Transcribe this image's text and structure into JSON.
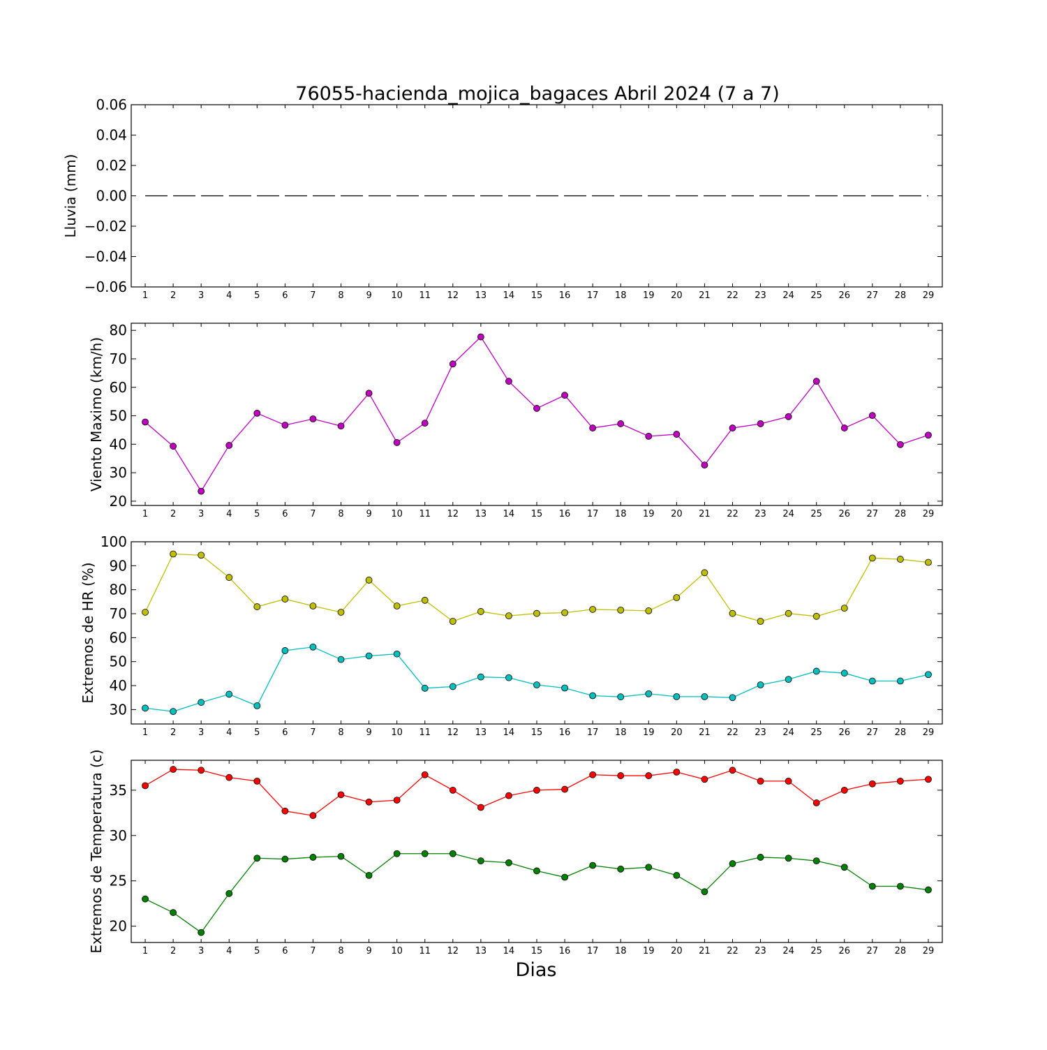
{
  "chart_data": {
    "type": "line",
    "title": "76055-hacienda_mojica_bagaces Abril 2024  (7 a 7)",
    "xlabel": "Dias",
    "x": [
      1,
      2,
      3,
      4,
      5,
      6,
      7,
      8,
      9,
      10,
      11,
      12,
      13,
      14,
      15,
      16,
      17,
      18,
      19,
      20,
      21,
      22,
      23,
      24,
      25,
      26,
      27,
      28,
      29
    ],
    "panels": [
      {
        "ylabel": "Lluvia (mm)",
        "ylim": [
          -0.06,
          0.06
        ],
        "yticks": [
          0.06,
          0.04,
          0.02,
          0.0,
          -0.02,
          -0.04,
          -0.06
        ],
        "ytick_labels": [
          "0.06",
          "0.04",
          "0.02",
          "0.00",
          "−0.02",
          "−0.04",
          "−0.06"
        ],
        "series": [
          {
            "color": "#000000",
            "style": "dashed",
            "marker": false,
            "values": [
              0,
              0,
              0,
              0,
              0,
              0,
              0,
              0,
              0,
              0,
              0,
              0,
              0,
              0,
              0,
              0,
              0,
              0,
              0,
              0,
              0,
              0,
              0,
              0,
              0,
              0,
              0,
              0,
              0
            ]
          }
        ]
      },
      {
        "ylabel": "Viento Maximo (km/h)",
        "ylim": [
          18.5,
          82.5
        ],
        "yticks": [
          80,
          70,
          60,
          50,
          40,
          30,
          20
        ],
        "ytick_labels": [
          "80",
          "70",
          "60",
          "50",
          "40",
          "30",
          "20"
        ],
        "series": [
          {
            "color": "#bf00bf",
            "style": "solid",
            "marker": true,
            "values": [
              47.8,
              39.3,
              23.5,
              39.6,
              50.9,
              46.7,
              48.9,
              46.4,
              57.9,
              40.6,
              47.4,
              68.2,
              77.7,
              62.1,
              52.6,
              57.2,
              45.7,
              47.2,
              42.8,
              43.5,
              32.7,
              45.7,
              47.2,
              49.7,
              62.1,
              45.7,
              50.1,
              39.9,
              43.2
            ]
          }
        ]
      },
      {
        "ylabel": "Extremos de HR (%)",
        "ylim": [
          24,
          100
        ],
        "yticks": [
          100,
          90,
          80,
          70,
          60,
          50,
          40,
          30
        ],
        "ytick_labels": [
          "100",
          "90",
          "80",
          "70",
          "60",
          "50",
          "40",
          "30"
        ],
        "series": [
          {
            "color": "#bfbf00",
            "style": "solid",
            "marker": true,
            "values": [
              70.6,
              94.9,
              94.4,
              85.1,
              72.9,
              76.1,
              73.2,
              70.6,
              84.0,
              73.2,
              75.6,
              66.8,
              70.9,
              69.1,
              70.1,
              70.4,
              71.8,
              71.5,
              71.2,
              76.7,
              87.1,
              70.1,
              66.8,
              70.1,
              68.9,
              72.3,
              93.2,
              92.7,
              91.4
            ]
          },
          {
            "color": "#00bfbf",
            "style": "solid",
            "marker": true,
            "values": [
              30.6,
              29.2,
              33.0,
              36.4,
              31.6,
              54.6,
              56.1,
              50.9,
              52.4,
              53.2,
              38.9,
              39.6,
              43.6,
              43.3,
              40.3,
              39.0,
              35.8,
              35.3,
              36.6,
              35.4,
              35.4,
              35.0,
              40.3,
              42.6,
              46.0,
              45.2,
              41.9,
              41.9,
              44.6
            ]
          }
        ]
      },
      {
        "ylabel": "Extremos de Temperatura (c)",
        "ylim": [
          18.2,
          38.3
        ],
        "yticks": [
          35,
          30,
          25,
          20
        ],
        "ytick_labels": [
          "35",
          "30",
          "25",
          "20"
        ],
        "series": [
          {
            "color": "#ff0000",
            "style": "solid",
            "marker": true,
            "values": [
              35.5,
              37.3,
              37.2,
              36.4,
              36.0,
              32.7,
              32.2,
              34.5,
              33.7,
              33.9,
              36.7,
              35.0,
              33.1,
              34.4,
              35.0,
              35.1,
              36.7,
              36.6,
              36.6,
              37.0,
              36.2,
              37.2,
              36.0,
              36.0,
              33.6,
              35.0,
              35.7,
              36.0,
              36.2
            ]
          },
          {
            "color": "#008000",
            "style": "solid",
            "marker": true,
            "values": [
              23.0,
              21.5,
              19.3,
              23.6,
              27.5,
              27.4,
              27.6,
              27.7,
              25.6,
              28.0,
              28.0,
              28.0,
              27.2,
              27.0,
              26.1,
              25.4,
              26.7,
              26.3,
              26.5,
              25.6,
              23.8,
              26.9,
              27.6,
              27.5,
              27.2,
              26.5,
              24.4,
              24.4,
              24.0
            ]
          }
        ]
      }
    ]
  }
}
